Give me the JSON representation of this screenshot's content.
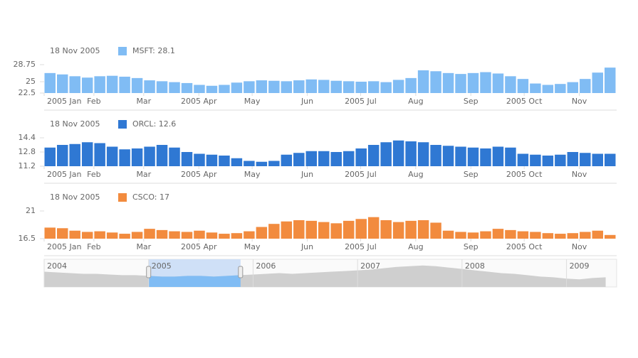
{
  "chart_data": [
    {
      "type": "bar",
      "legend_date": "18 Nov 2005",
      "legend": "MSFT: 28.1",
      "color": "#80bcf4",
      "x": [
        3,
        10,
        17,
        24,
        31,
        38,
        45,
        52,
        59,
        66,
        73,
        80,
        87,
        94,
        101,
        108,
        115,
        122,
        129,
        136,
        143,
        150,
        157,
        164,
        171,
        178,
        185,
        192,
        199,
        206,
        213,
        220,
        227,
        234,
        241,
        248,
        255,
        262,
        269,
        276,
        283,
        290,
        297,
        304,
        311,
        318
      ],
      "values": [
        26.9,
        26.6,
        26.2,
        25.9,
        26.2,
        26.3,
        26.1,
        25.8,
        25.3,
        25.1,
        24.9,
        24.7,
        24.3,
        24.1,
        24.3,
        24.8,
        25.1,
        25.3,
        25.2,
        25.1,
        25.3,
        25.5,
        25.4,
        25.2,
        25.1,
        25.0,
        25.1,
        24.9,
        25.4,
        25.8,
        27.5,
        27.3,
        26.9,
        26.7,
        26.9,
        27.1,
        26.8,
        26.2,
        25.6,
        24.6,
        24.3,
        24.5,
        24.9,
        25.6,
        27.0,
        28.1
      ],
      "xlim": [
        3,
        325
      ],
      "ylim": [
        22.5,
        28.75
      ],
      "yticks": [
        22.5,
        25,
        28.75
      ],
      "xticks": [
        {
          "value": 3,
          "label": "2005 Jan"
        },
        {
          "value": 31,
          "label": "Feb"
        },
        {
          "value": 59,
          "label": "Mar"
        },
        {
          "value": 90,
          "label": "2005 Apr"
        },
        {
          "value": 120,
          "label": "May"
        },
        {
          "value": 151,
          "label": "Jun"
        },
        {
          "value": 181,
          "label": "2005 Jul"
        },
        {
          "value": 212,
          "label": "Aug"
        },
        {
          "value": 243,
          "label": "Sep"
        },
        {
          "value": 273,
          "label": "2005 Oct"
        },
        {
          "value": 304,
          "label": "Nov"
        }
      ]
    },
    {
      "type": "bar",
      "legend_date": "18 Nov 2005",
      "legend": "ORCL: 12.6",
      "color": "#2f78d3",
      "x": [
        3,
        10,
        17,
        24,
        31,
        38,
        45,
        52,
        59,
        66,
        73,
        80,
        87,
        94,
        101,
        108,
        115,
        122,
        129,
        136,
        143,
        150,
        157,
        164,
        171,
        178,
        185,
        192,
        199,
        206,
        213,
        220,
        227,
        234,
        241,
        248,
        255,
        262,
        269,
        276,
        283,
        290,
        297,
        304,
        311,
        318
      ],
      "values": [
        13.3,
        13.6,
        13.7,
        13.9,
        13.8,
        13.4,
        13.1,
        13.2,
        13.4,
        13.6,
        13.3,
        12.8,
        12.6,
        12.5,
        12.4,
        12.1,
        11.8,
        11.7,
        11.8,
        12.5,
        12.7,
        12.9,
        12.9,
        12.8,
        12.9,
        13.2,
        13.6,
        13.9,
        14.1,
        14.0,
        13.9,
        13.6,
        13.5,
        13.4,
        13.3,
        13.2,
        13.4,
        13.3,
        12.6,
        12.5,
        12.4,
        12.5,
        12.8,
        12.7,
        12.6,
        12.6
      ],
      "xlim": [
        3,
        325
      ],
      "ylim": [
        11.2,
        14.4
      ],
      "yticks": [
        11.2,
        12.8,
        14.4
      ],
      "xticks": [
        {
          "value": 3,
          "label": "2005 Jan"
        },
        {
          "value": 31,
          "label": "Feb"
        },
        {
          "value": 59,
          "label": "Mar"
        },
        {
          "value": 90,
          "label": "2005 Apr"
        },
        {
          "value": 120,
          "label": "May"
        },
        {
          "value": 151,
          "label": "Jun"
        },
        {
          "value": 181,
          "label": "2005 Jul"
        },
        {
          "value": 212,
          "label": "Aug"
        },
        {
          "value": 243,
          "label": "Sep"
        },
        {
          "value": 273,
          "label": "2005 Oct"
        },
        {
          "value": 304,
          "label": "Nov"
        }
      ]
    },
    {
      "type": "bar",
      "legend_date": "18 Nov 2005",
      "legend": "CSCO: 17",
      "color": "#f28b3e",
      "x": [
        3,
        10,
        17,
        24,
        31,
        38,
        45,
        52,
        59,
        66,
        73,
        80,
        87,
        94,
        101,
        108,
        115,
        122,
        129,
        136,
        143,
        150,
        157,
        164,
        171,
        178,
        185,
        192,
        199,
        206,
        213,
        220,
        227,
        234,
        241,
        248,
        255,
        262,
        269,
        276,
        283,
        290,
        297,
        304,
        311,
        318
      ],
      "values": [
        18.3,
        18.2,
        17.8,
        17.6,
        17.7,
        17.5,
        17.3,
        17.6,
        18.1,
        17.9,
        17.7,
        17.6,
        17.8,
        17.5,
        17.3,
        17.4,
        17.7,
        18.4,
        18.9,
        19.3,
        19.5,
        19.4,
        19.2,
        19.0,
        19.4,
        19.7,
        20.0,
        19.5,
        19.2,
        19.4,
        19.5,
        19.1,
        17.8,
        17.6,
        17.5,
        17.7,
        18.1,
        17.9,
        17.7,
        17.6,
        17.4,
        17.3,
        17.4,
        17.6,
        17.8,
        17.1
      ],
      "xlim": [
        3,
        325
      ],
      "ylim": [
        16.5,
        21
      ],
      "yticks": [
        16.5,
        21
      ],
      "xticks": [
        {
          "value": 3,
          "label": "2005 Jan"
        },
        {
          "value": 31,
          "label": "Feb"
        },
        {
          "value": 59,
          "label": "Mar"
        },
        {
          "value": 90,
          "label": "2005 Apr"
        },
        {
          "value": 120,
          "label": "May"
        },
        {
          "value": 151,
          "label": "Jun"
        },
        {
          "value": 181,
          "label": "2005 Jul"
        },
        {
          "value": 212,
          "label": "Aug"
        },
        {
          "value": 243,
          "label": "Sep"
        },
        {
          "value": 273,
          "label": "2005 Oct"
        },
        {
          "value": 304,
          "label": "Nov"
        }
      ]
    },
    {
      "type": "area",
      "color": "#cfcfcf",
      "selection_color": "#cfe0f7",
      "selection_fill": "#80bcf4",
      "x": [
        2004,
        2004.125,
        2004.25,
        2004.375,
        2004.5,
        2004.625,
        2004.75,
        2004.875,
        2005,
        2005.125,
        2005.25,
        2005.375,
        2005.5,
        2005.625,
        2005.75,
        2005.875,
        2006,
        2006.125,
        2006.25,
        2006.375,
        2006.5,
        2006.625,
        2006.75,
        2006.875,
        2007,
        2007.125,
        2007.25,
        2007.375,
        2007.5,
        2007.625,
        2007.75,
        2007.875,
        2008,
        2008.125,
        2008.25,
        2008.375,
        2008.5,
        2008.625,
        2008.75,
        2008.875,
        2009,
        2009.125,
        2009.25,
        2009.375
      ],
      "values": [
        22,
        21,
        20,
        19,
        19,
        18,
        17,
        17,
        16,
        15,
        15,
        16,
        16,
        15,
        16,
        17,
        18,
        19,
        20,
        19,
        20,
        21,
        22,
        23,
        24,
        25,
        27,
        29,
        30,
        31,
        30,
        28,
        26,
        24,
        22,
        20,
        19,
        17,
        15,
        14,
        12,
        11,
        13,
        14
      ],
      "xlim": [
        2004,
        2009.48
      ],
      "ylim": [
        0,
        40
      ],
      "xticks": [
        2004,
        2005,
        2006,
        2007,
        2008,
        2009
      ],
      "selection": [
        2005,
        2005.88
      ]
    }
  ]
}
